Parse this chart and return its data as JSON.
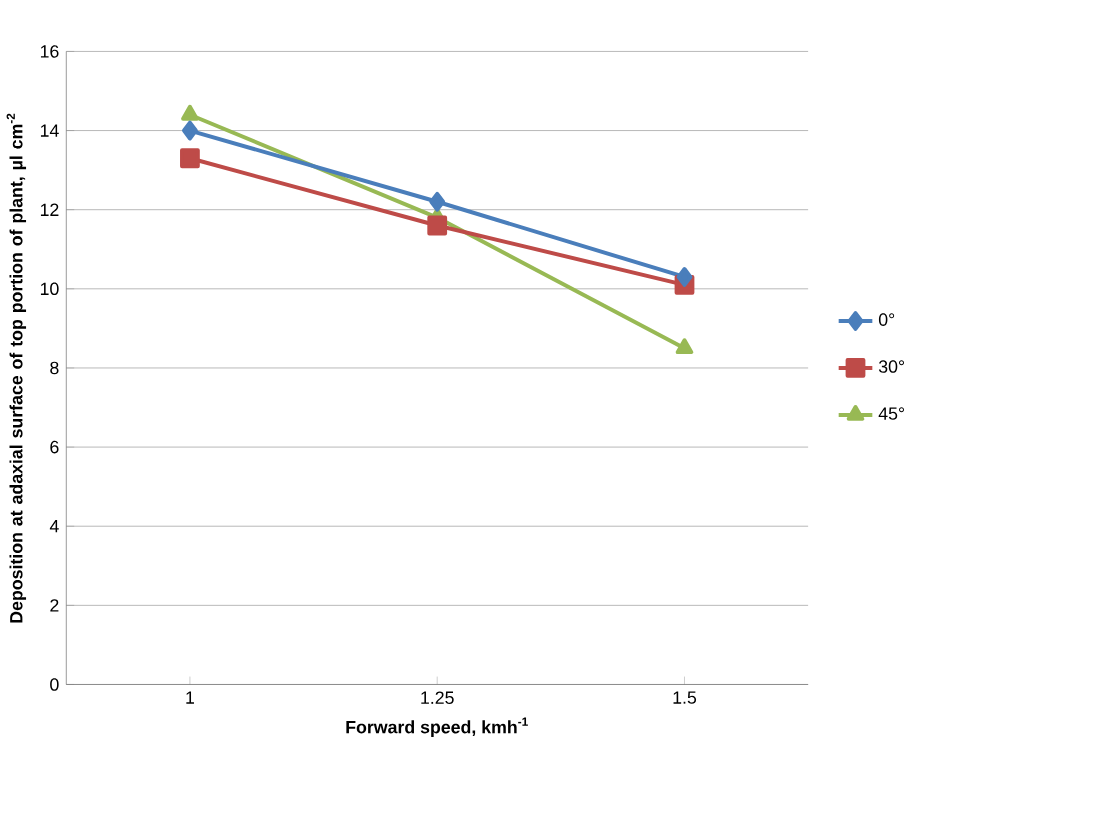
{
  "chart_data": {
    "type": "line",
    "xlabel": "Forward speed, kmh$^{-1}$",
    "ylabel": "Deposition at adaxial surface of top portion of plant, µl cm$^{-2}$",
    "categories": [
      "1",
      "1.25",
      "1.5"
    ],
    "series": [
      {
        "name": "0°",
        "color": "#4a7ebb",
        "marker": "diamond",
        "values": [
          14.0,
          12.2,
          10.3
        ]
      },
      {
        "name": "30°",
        "color": "#be4b48",
        "marker": "square",
        "values": [
          13.3,
          11.6,
          10.1
        ]
      },
      {
        "name": "45°",
        "color": "#98b954",
        "marker": "triangle",
        "values": [
          14.4,
          11.8,
          8.5
        ]
      }
    ],
    "ylim": [
      0,
      16
    ],
    "yticks": [
      0,
      2,
      4,
      6,
      8,
      10,
      12,
      14,
      16
    ],
    "grid": "y",
    "legend": "right"
  }
}
